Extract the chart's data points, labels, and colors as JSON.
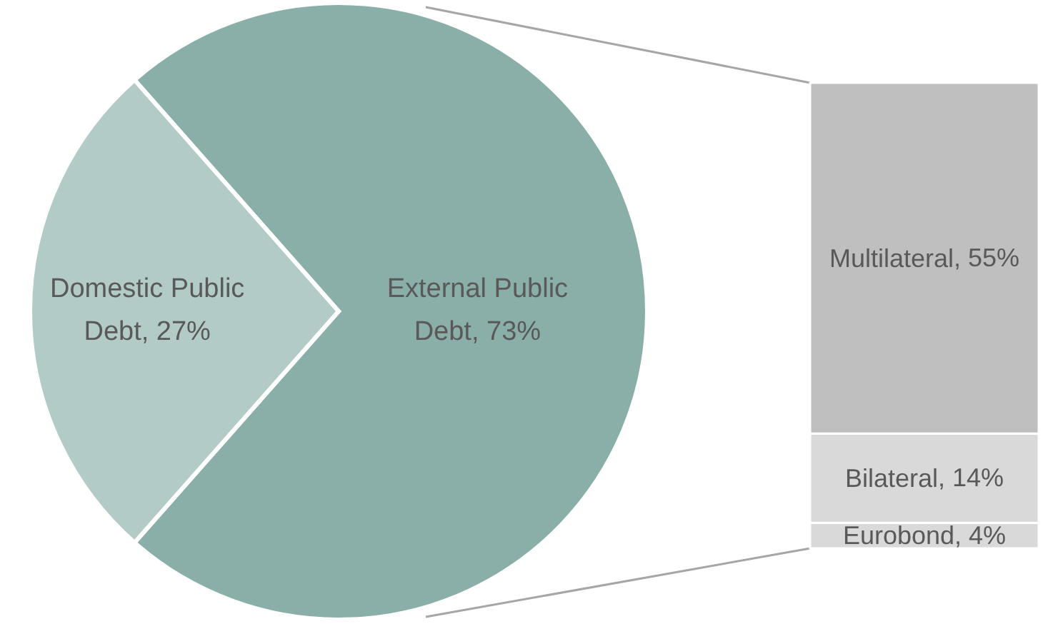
{
  "chart_data": [
    {
      "type": "pie",
      "categories": [
        "External Public Debt",
        "Domestic Public Debt"
      ],
      "values": [
        73,
        27
      ],
      "colors": [
        "#8aafa9",
        "#b3cbc7"
      ],
      "value_labels": [
        ", 73%",
        ", 27%"
      ]
    },
    {
      "type": "bar",
      "stacked": true,
      "categories": [
        null
      ],
      "series": [
        {
          "name": "Eurobond",
          "color": "#d9d9d9",
          "values": [
            4
          ],
          "value_labels": [
            ", 4%"
          ]
        },
        {
          "name": "Bilateral",
          "color": "#d9d9d9",
          "values": [
            14
          ],
          "value_labels": [
            ", 14%"
          ]
        },
        {
          "name": "Multilateral",
          "color": "#bfbfbf",
          "values": [
            55
          ],
          "value_labels": [
            ", 55%"
          ]
        }
      ]
    }
  ]
}
